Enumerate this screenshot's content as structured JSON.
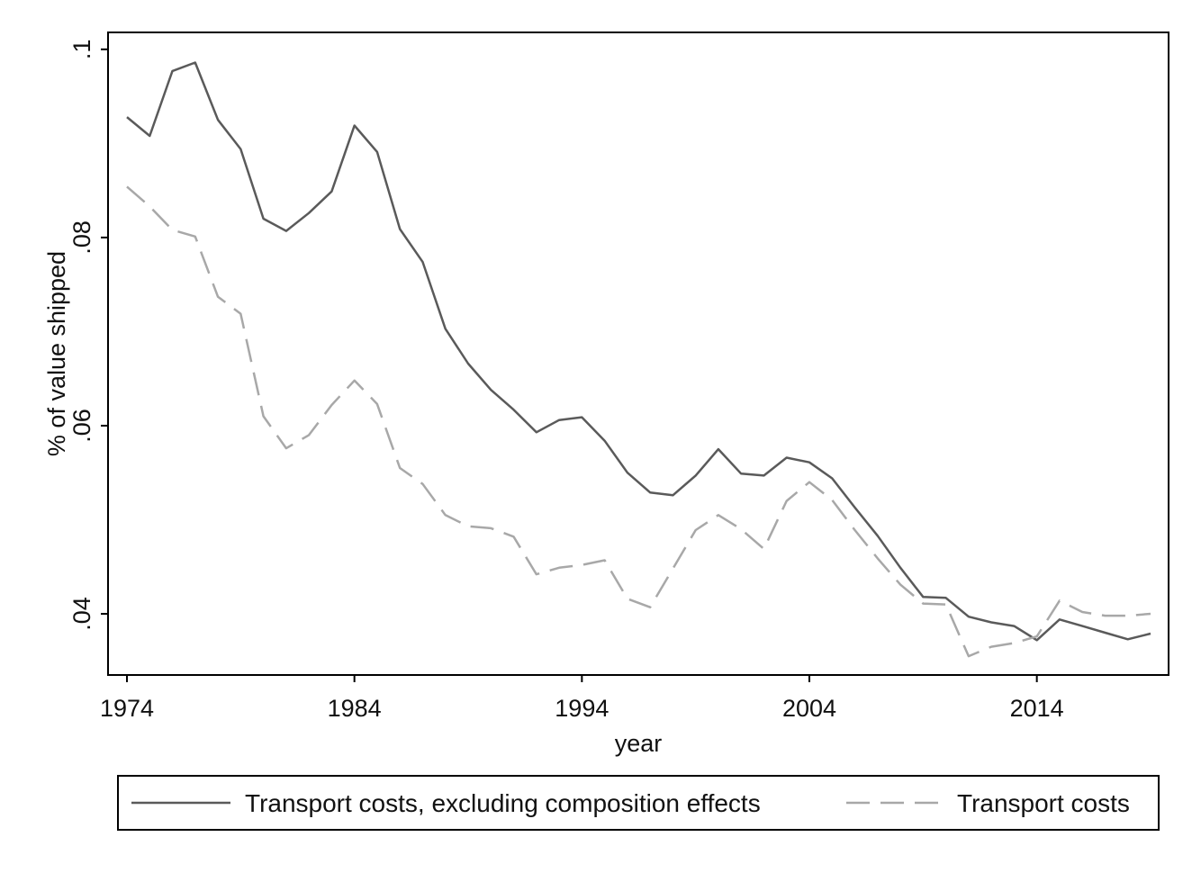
{
  "chart_data": {
    "type": "line",
    "title": "",
    "xlabel": "year",
    "ylabel": "% of value shipped",
    "xlim": [
      1974,
      2019
    ],
    "ylim": [
      0.0335,
      0.1018
    ],
    "x_ticks": [
      1974,
      1984,
      1994,
      2004,
      2014
    ],
    "x_tick_labels": [
      "1974",
      "1984",
      "1994",
      "2004",
      "2014"
    ],
    "y_ticks": [
      0.04,
      0.06,
      0.08,
      0.1
    ],
    "y_tick_labels": [
      ".04",
      ".06",
      ".08",
      ".1"
    ],
    "grid": false,
    "legend_position": "bottom",
    "x": [
      1974,
      1975,
      1976,
      1977,
      1978,
      1979,
      1980,
      1981,
      1982,
      1983,
      1984,
      1985,
      1986,
      1987,
      1988,
      1989,
      1990,
      1991,
      1992,
      1993,
      1994,
      1995,
      1996,
      1997,
      1998,
      1999,
      2000,
      2001,
      2002,
      2003,
      2004,
      2005,
      2006,
      2007,
      2008,
      2009,
      2010,
      2011,
      2012,
      2013,
      2014,
      2015,
      2016,
      2017,
      2018,
      2019
    ],
    "series": [
      {
        "name": "Transport costs, excluding composition effects",
        "color": "#5a5a5a",
        "dash": "solid",
        "values": [
          0.0928,
          0.0908,
          0.0977,
          0.0986,
          0.0925,
          0.0894,
          0.082,
          0.0807,
          0.0826,
          0.0849,
          0.0919,
          0.0891,
          0.0809,
          0.0774,
          0.0703,
          0.0666,
          0.0638,
          0.0617,
          0.0593,
          0.0606,
          0.0609,
          0.0584,
          0.055,
          0.0529,
          0.0526,
          0.0547,
          0.0575,
          0.0549,
          0.0547,
          0.0566,
          0.0561,
          0.0544,
          0.0513,
          0.0483,
          0.0449,
          0.0418,
          0.0417,
          0.0397,
          0.0391,
          0.0387,
          0.0372,
          0.0394,
          0.0387,
          0.038,
          0.0373,
          0.0379
        ]
      },
      {
        "name": "Transport costs",
        "color": "#a8a8a8",
        "dash": "dashed",
        "values": [
          0.0854,
          0.0833,
          0.0808,
          0.0801,
          0.0737,
          0.0719,
          0.061,
          0.0576,
          0.059,
          0.0622,
          0.0648,
          0.0623,
          0.0555,
          0.0538,
          0.0505,
          0.0493,
          0.0491,
          0.0482,
          0.0442,
          0.0449,
          0.0452,
          0.0457,
          0.0416,
          0.0407,
          0.0448,
          0.0489,
          0.0505,
          0.049,
          0.0469,
          0.052,
          0.054,
          0.0521,
          0.0489,
          0.0459,
          0.0431,
          0.0411,
          0.041,
          0.0355,
          0.0365,
          0.0369,
          0.0376,
          0.0414,
          0.0402,
          0.0398,
          0.0398,
          0.04
        ]
      }
    ]
  }
}
